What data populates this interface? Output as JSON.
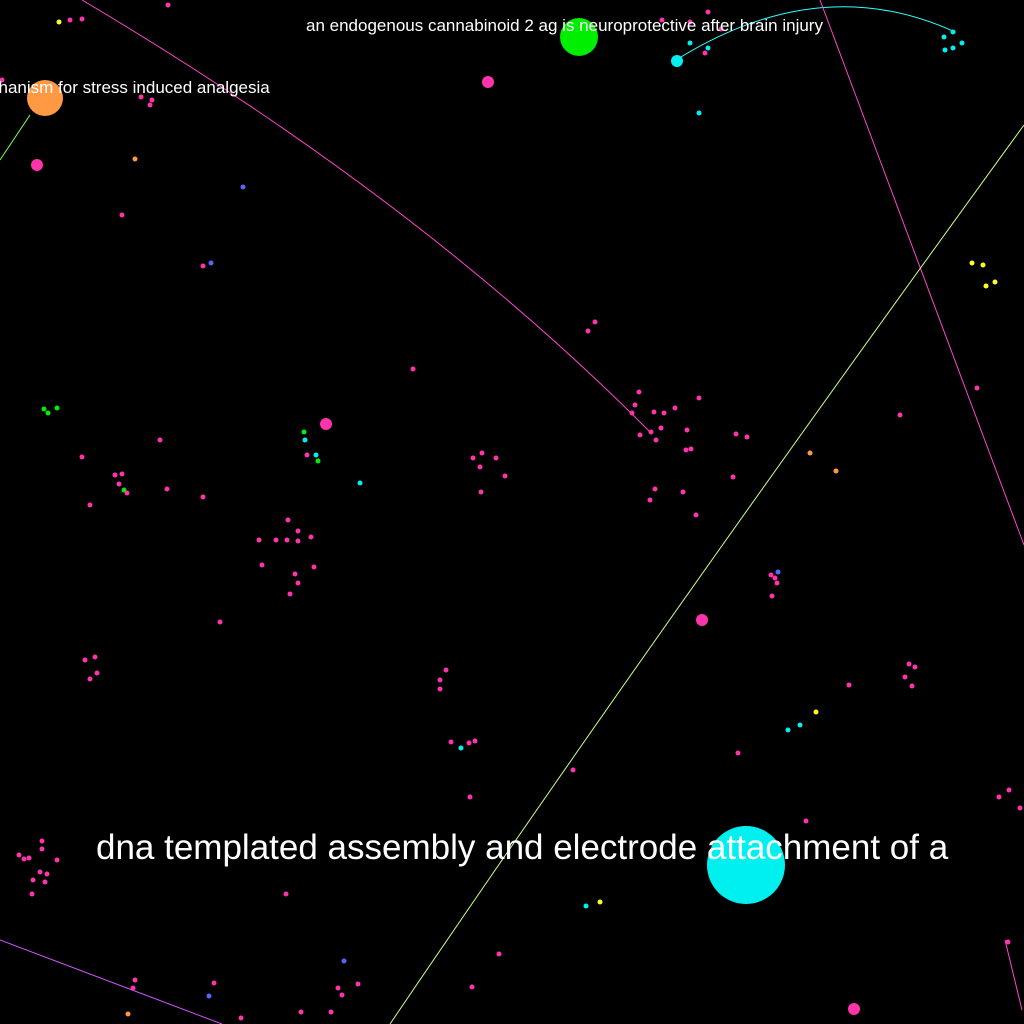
{
  "graph": {
    "background_color": "#000000",
    "label_color": "#ffffff",
    "labels": {
      "cannabinoid": "an endogenous cannabinoid 2 ag is neuroprotective after brain injury",
      "stress": "chanism for stress induced analgesia",
      "dna": "dna templated assembly and electrode attachment of a"
    },
    "node_colors": {
      "pink": "#ff33aa",
      "cyan": "#00f0f0",
      "green": "#00ee00",
      "orange": "#ff9944",
      "yellow": "#ffff22",
      "blue": "#5566ff"
    },
    "edge_colors": {
      "pink": "#ff44cc",
      "cyan": "#33ffff",
      "yellow_green": "#ccff88",
      "green": "#88ff44",
      "violet": "#cc55ff"
    }
  }
}
